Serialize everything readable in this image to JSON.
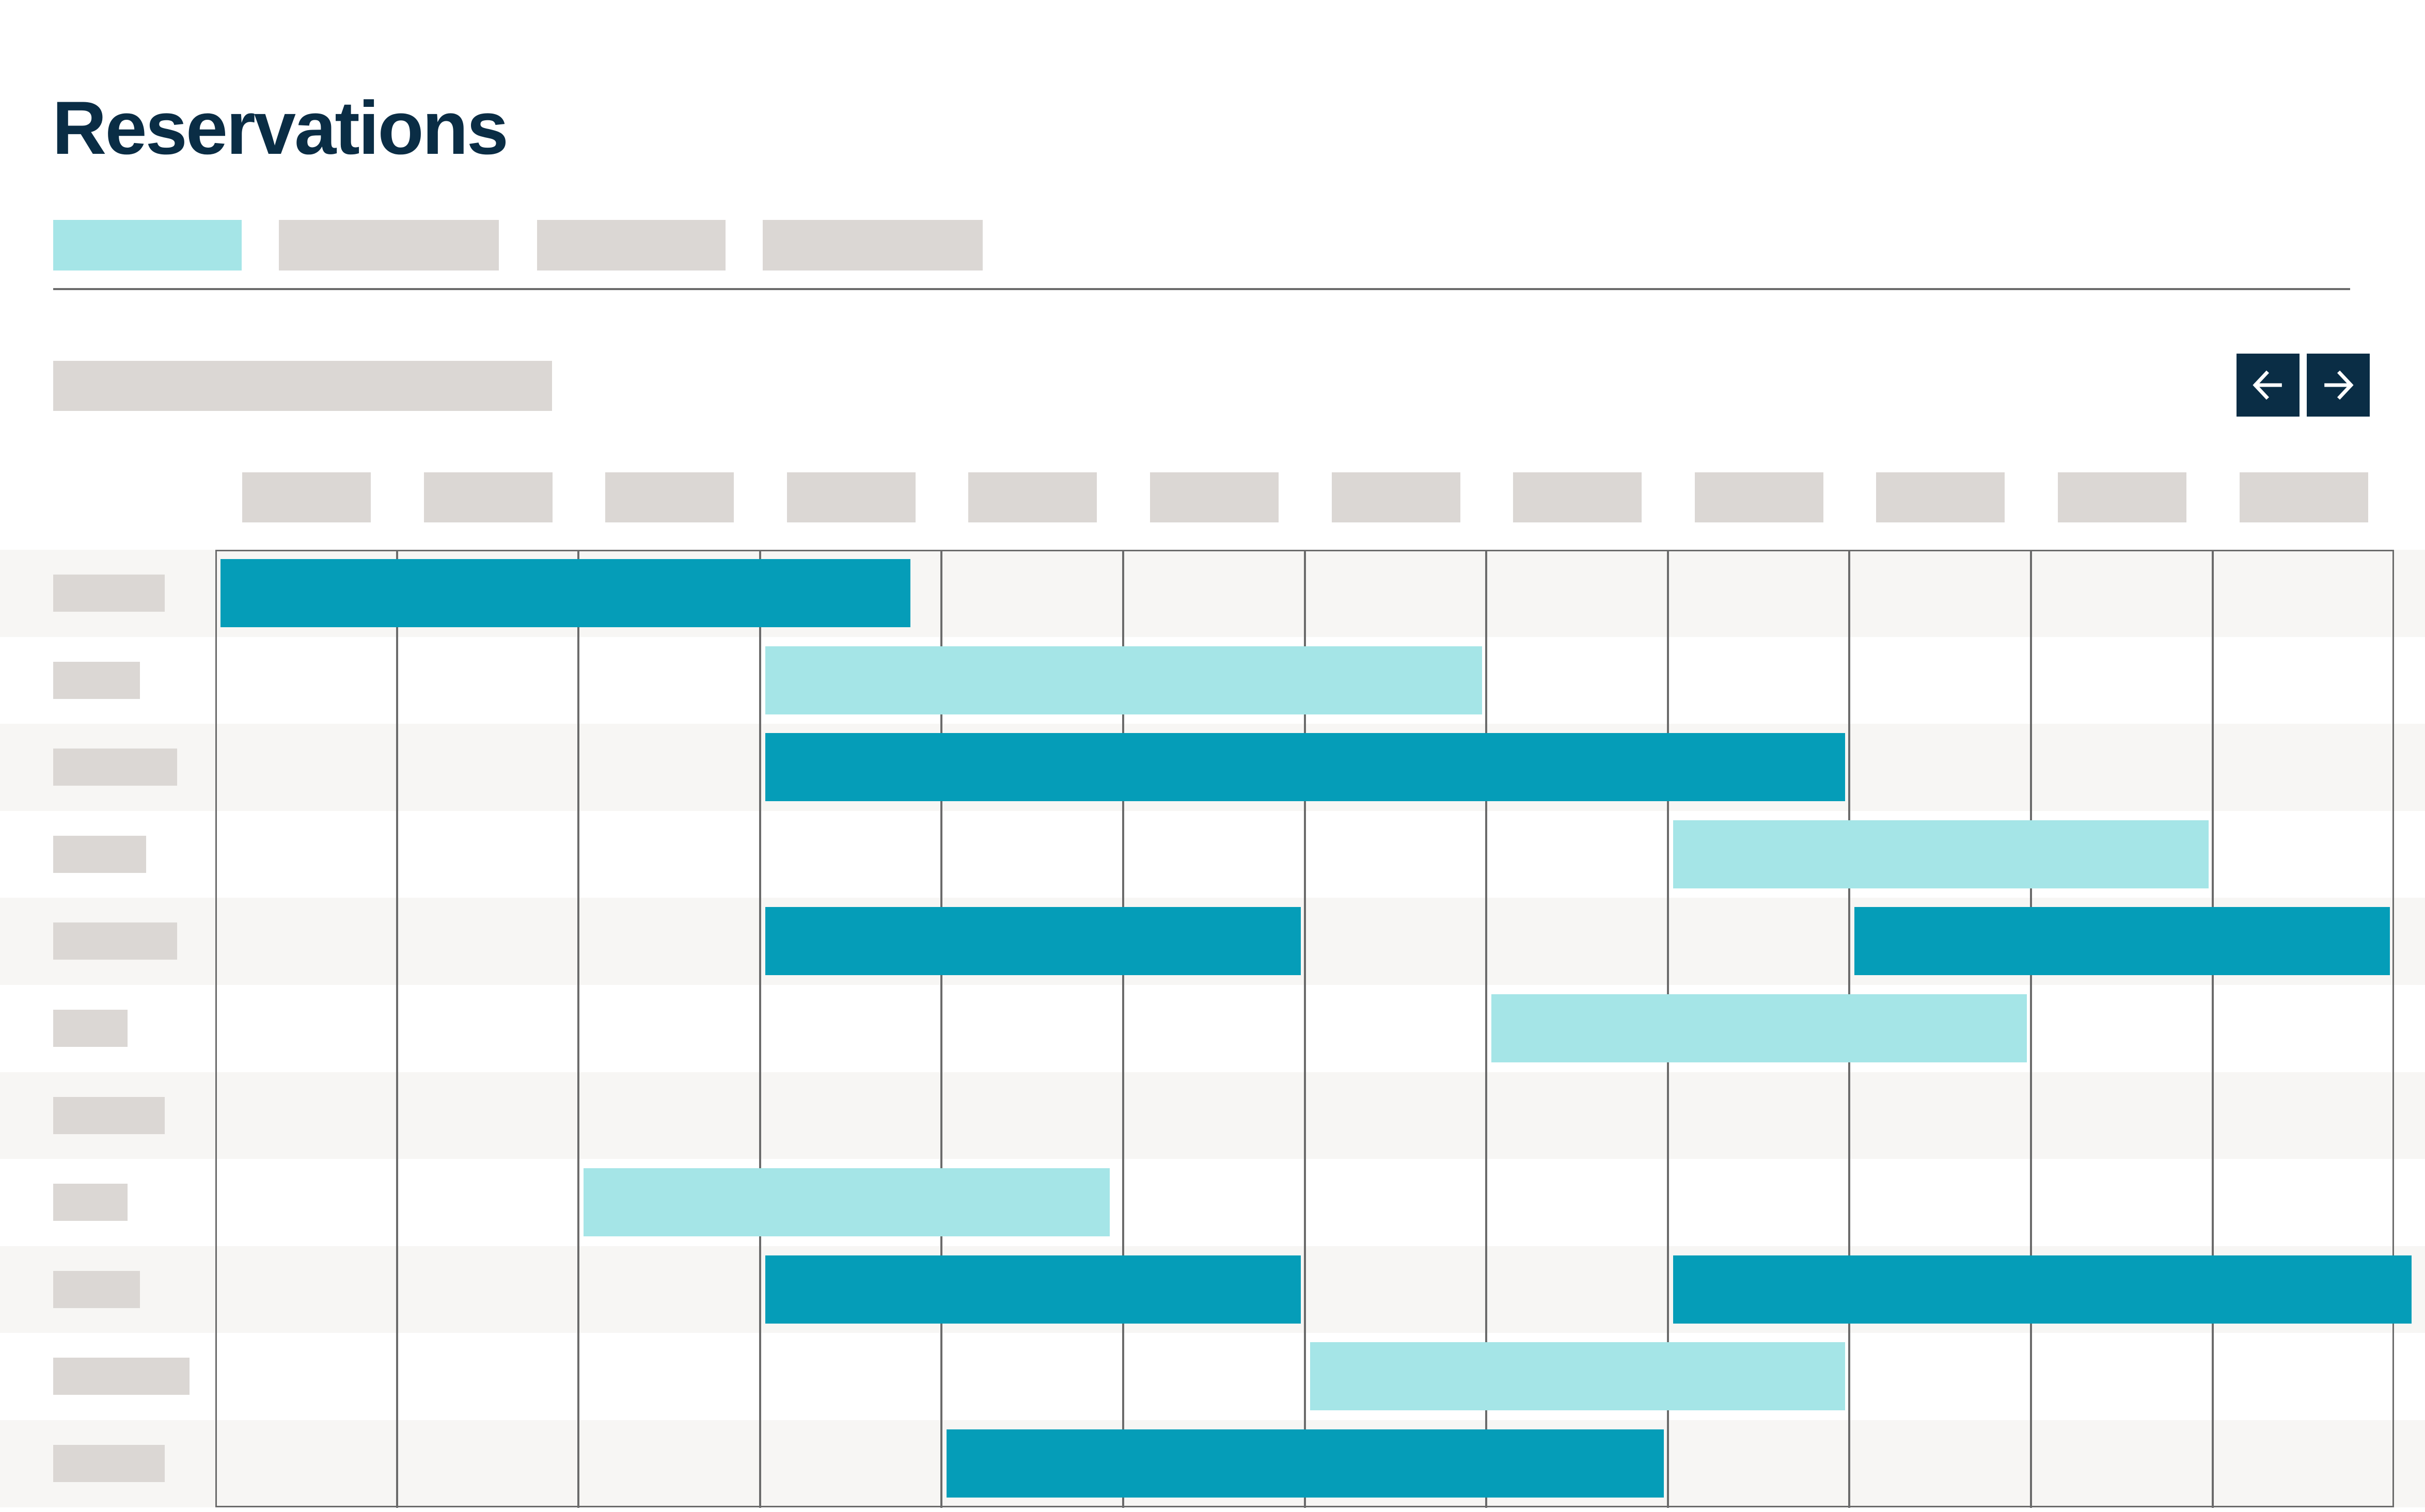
{
  "header": {
    "title": "Reservations"
  },
  "tabs": [
    {
      "id": "tab-1",
      "active": true
    },
    {
      "id": "tab-2",
      "active": false
    },
    {
      "id": "tab-3",
      "active": false
    },
    {
      "id": "tab-4",
      "active": false
    }
  ],
  "navigation": {
    "prev_icon": "arrow-left-icon",
    "next_icon": "arrow-right-icon"
  },
  "timeline": {
    "column_count": 12,
    "row_count": 11,
    "reservations": [
      {
        "row": 1,
        "start": 1,
        "end": 4.85,
        "status": "confirmed"
      },
      {
        "row": 2,
        "start": 4,
        "end": 8,
        "status": "pending"
      },
      {
        "row": 3,
        "start": 4,
        "end": 10,
        "status": "confirmed"
      },
      {
        "row": 4,
        "start": 9,
        "end": 12,
        "status": "pending"
      },
      {
        "row": 5,
        "start": 4,
        "end": 7,
        "status": "confirmed"
      },
      {
        "row": 5,
        "start": 10,
        "end": 13,
        "status": "confirmed"
      },
      {
        "row": 6,
        "start": 8,
        "end": 11,
        "status": "pending"
      },
      {
        "row": 8,
        "start": 3,
        "end": 5.95,
        "status": "pending"
      },
      {
        "row": 9,
        "start": 4,
        "end": 7,
        "status": "confirmed"
      },
      {
        "row": 9,
        "start": 9,
        "end": 13.15,
        "status": "confirmed"
      },
      {
        "row": 10,
        "start": 7,
        "end": 10,
        "status": "pending"
      },
      {
        "row": 11,
        "start": 5,
        "end": 9,
        "status": "confirmed"
      }
    ]
  },
  "colors": {
    "confirmed": "#059db8",
    "pending": "#a5e5e7",
    "skeleton": "#dbd7d4",
    "title": "#0a2d45",
    "grid": "#6b6b6b",
    "row_alt": "#f7f6f4"
  }
}
